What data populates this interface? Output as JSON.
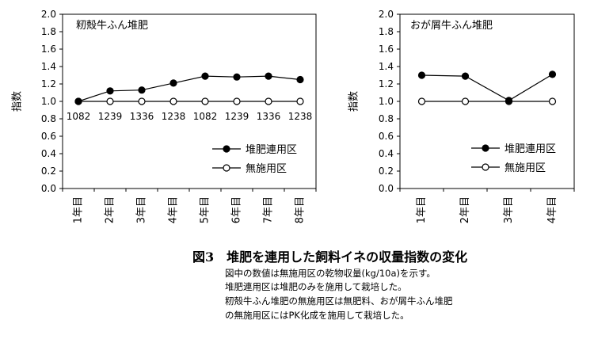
{
  "chart_data": [
    {
      "type": "line",
      "title": "籾殻牛ふん堆肥",
      "ylabel": "指数",
      "ylim": [
        0,
        2.0
      ],
      "yticks": [
        "0.0",
        "0.2",
        "0.4",
        "0.6",
        "0.8",
        "1.0",
        "1.2",
        "1.4",
        "1.6",
        "1.8",
        "2.0"
      ],
      "categories": [
        "1年目",
        "2年目",
        "3年目",
        "4年目",
        "5年目",
        "6年目",
        "7年目",
        "8年目"
      ],
      "series": [
        {
          "name": "堆肥連用区",
          "marker": "filled",
          "values": [
            1.0,
            1.12,
            1.13,
            1.21,
            1.29,
            1.28,
            1.29,
            1.25
          ]
        },
        {
          "name": "無施用区",
          "marker": "open",
          "values": [
            1.0,
            1.0,
            1.0,
            1.0,
            1.0,
            1.0,
            1.0,
            1.0
          ]
        }
      ],
      "data_labels": [
        "1082",
        "1239",
        "1336",
        "1238",
        "1082",
        "1239",
        "1336",
        "1238"
      ],
      "legend": "right"
    },
    {
      "type": "line",
      "title": "おが屑牛ふん堆肥",
      "ylabel": "指数",
      "ylim": [
        0,
        2.0
      ],
      "yticks": [
        "0.0",
        "0.2",
        "0.4",
        "0.6",
        "0.8",
        "1.0",
        "1.2",
        "1.4",
        "1.6",
        "1.8",
        "2.0"
      ],
      "categories": [
        "1年目",
        "2年目",
        "3年目",
        "4年目"
      ],
      "series": [
        {
          "name": "堆肥連用区",
          "marker": "filled",
          "values": [
            1.3,
            1.29,
            1.01,
            1.31
          ]
        },
        {
          "name": "無施用区",
          "marker": "open",
          "values": [
            1.0,
            1.0,
            1.0,
            1.0
          ]
        }
      ],
      "legend": "bottom-right"
    }
  ],
  "caption": {
    "title": "図3　堆肥を連用した飼料イネの収量指数の変化",
    "notes": [
      "図中の数値は無施用区の乾物収量(kg/10a)を示す。",
      "堆肥連用区は堆肥のみを施用して栽培した。",
      "籾殻牛ふん堆肥の無施用区は無肥料、おが屑牛ふん堆肥",
      "の無施用区にはPK化成を施用して栽培した。"
    ]
  }
}
